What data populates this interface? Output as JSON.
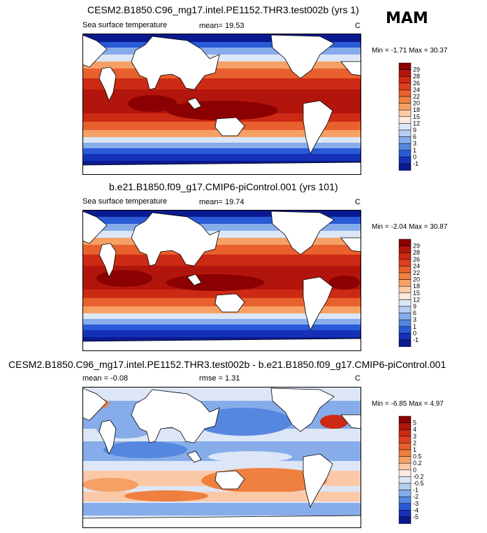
{
  "season": "MAM",
  "panels": [
    {
      "title": "CESM2.B1850.C96_mg17.intel.PE1152.THR3.test002b (yrs 1)",
      "subtitle_left": "Sea surface temperature",
      "subtitle_mid": "mean=  19.53",
      "units": "C",
      "minmax": "Min =  -1.71 Max =  30.37",
      "levels": [
        "29",
        "28",
        "26",
        "24",
        "22",
        "20",
        "18",
        "15",
        "12",
        "9",
        "6",
        "3",
        "1",
        "0",
        "-1"
      ],
      "palette": [
        "#8b0000",
        "#b2150c",
        "#cc2a14",
        "#dc4020",
        "#e8602e",
        "#f08040",
        "#f6a066",
        "#fbc9a8",
        "#fbe8de",
        "#dce6f6",
        "#b4cdf0",
        "#86acea",
        "#5587e0",
        "#2a5ad6",
        "#1631b8",
        "#0a1a90"
      ]
    },
    {
      "title": "b.e21.B1850.f09_g17.CMIP6-piControl.001 (yrs 101)",
      "subtitle_left": "Sea surface temperature",
      "subtitle_mid": "mean=  19.74",
      "units": "C",
      "minmax": "Min =  -2.04 Max =  30.87",
      "levels": [
        "29",
        "28",
        "26",
        "24",
        "22",
        "20",
        "18",
        "15",
        "12",
        "9",
        "6",
        "3",
        "1",
        "0",
        "-1"
      ],
      "palette": [
        "#8b0000",
        "#b2150c",
        "#cc2a14",
        "#dc4020",
        "#e8602e",
        "#f08040",
        "#f6a066",
        "#fbc9a8",
        "#fbe8de",
        "#dce6f6",
        "#b4cdf0",
        "#86acea",
        "#5587e0",
        "#2a5ad6",
        "#1631b8",
        "#0a1a90"
      ]
    },
    {
      "title": "CESM2.B1850.C96_mg17.intel.PE1152.THR3.test002b - b.e21.B1850.f09_g17.CMIP6-piControl.001",
      "subtitle_left": "mean =  -0.08",
      "subtitle_mid": "rmse =   1.31",
      "units": "C",
      "minmax": "Min =  -6.85 Max =   4.97",
      "levels": [
        "5",
        "4",
        "3",
        "2",
        "1",
        "0.5",
        "0.2",
        "0",
        "-0.2",
        "-0.5",
        "-1",
        "-2",
        "-3",
        "-4",
        "-5"
      ],
      "palette": [
        "#8b0000",
        "#b2150c",
        "#cc2a14",
        "#dc4020",
        "#e8602e",
        "#f08040",
        "#f6a066",
        "#fbc9a8",
        "#fbe8de",
        "#dce6f6",
        "#b4cdf0",
        "#86acea",
        "#5587e0",
        "#2a5ad6",
        "#1631b8",
        "#0a1a90"
      ]
    }
  ],
  "chart_data": [
    {
      "type": "heatmap",
      "title": "CESM2.B1850.C96_mg17.intel.PE1152.THR3.test002b (yrs 1)",
      "variable": "Sea surface temperature",
      "units": "C",
      "mean": 19.53,
      "min": -1.71,
      "max": 30.37,
      "contour_levels": [
        -1,
        0,
        1,
        3,
        6,
        9,
        12,
        15,
        18,
        20,
        22,
        24,
        26,
        28,
        29
      ]
    },
    {
      "type": "heatmap",
      "title": "b.e21.B1850.f09_g17.CMIP6-piControl.001 (yrs 101)",
      "variable": "Sea surface temperature",
      "units": "C",
      "mean": 19.74,
      "min": -2.04,
      "max": 30.87,
      "contour_levels": [
        -1,
        0,
        1,
        3,
        6,
        9,
        12,
        15,
        18,
        20,
        22,
        24,
        26,
        28,
        29
      ]
    },
    {
      "type": "heatmap",
      "title": "CESM2.B1850.C96_mg17.intel.PE1152.THR3.test002b - b.e21.B1850.f09_g17.CMIP6-piControl.001",
      "units": "C",
      "mean": -0.08,
      "rmse": 1.31,
      "min": -6.85,
      "max": 4.97,
      "contour_levels": [
        -5,
        -4,
        -3,
        -2,
        -1,
        -0.5,
        -0.2,
        0,
        0.2,
        0.5,
        1,
        2,
        3,
        4,
        5
      ]
    }
  ]
}
